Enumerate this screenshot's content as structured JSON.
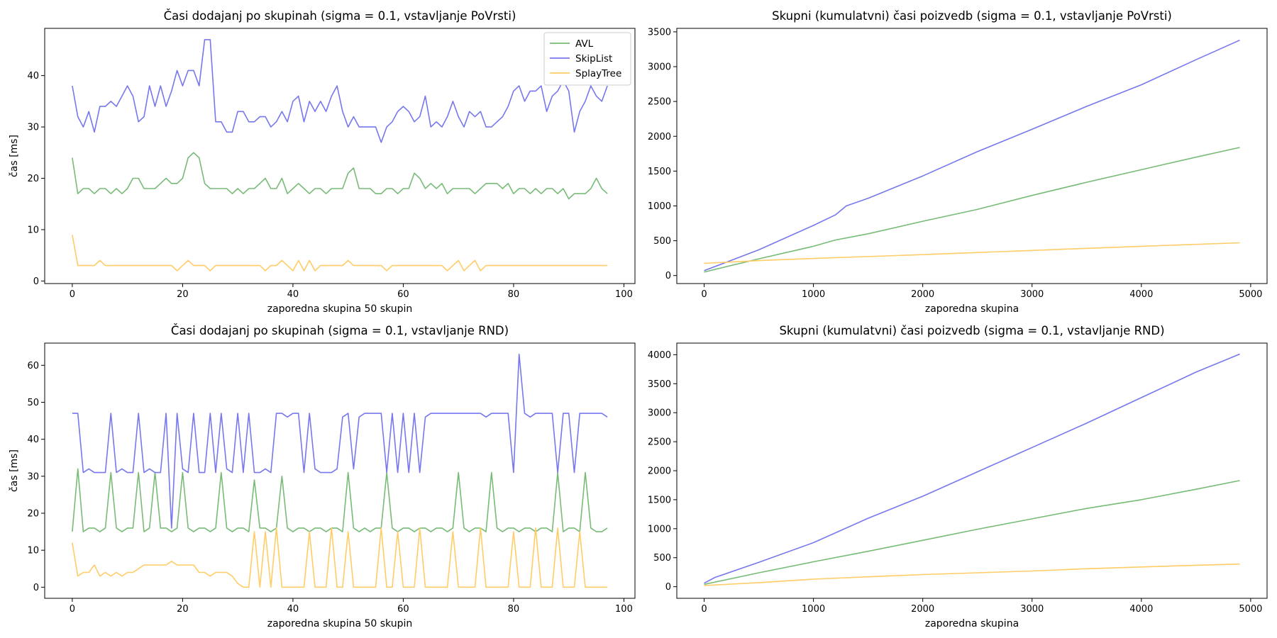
{
  "chart_data": [
    {
      "type": "line",
      "title": "Časi dodajanj po skupinah (sigma = 0.1, vstavljanje PoVrsti)",
      "xlabel": "zaporedna skupina 50 skupin",
      "ylabel": "čas [ms]",
      "xlim": [
        -5,
        102
      ],
      "ylim": [
        -0.5,
        49.2
      ],
      "xticks": [
        0,
        20,
        40,
        60,
        80,
        100
      ],
      "yticks": [
        0,
        10,
        20,
        30,
        40
      ],
      "legend": "top-right",
      "grid": false,
      "x_start": 0,
      "x_step": 1,
      "series": [
        {
          "name": "AVL",
          "color": "#77bb77",
          "values": [
            24,
            17,
            18,
            18,
            17,
            18,
            18,
            17,
            18,
            17,
            18,
            20,
            20,
            18,
            18,
            18,
            19,
            20,
            19,
            19,
            20,
            24,
            25,
            24,
            19,
            18,
            18,
            18,
            18,
            17,
            18,
            17,
            18,
            18,
            19,
            20,
            18,
            18,
            20,
            17,
            18,
            19,
            18,
            17,
            18,
            18,
            17,
            18,
            18,
            18,
            21,
            22,
            18,
            18,
            18,
            17,
            17,
            18,
            18,
            17,
            18,
            18,
            21,
            20,
            18,
            19,
            18,
            19,
            17,
            18,
            18,
            18,
            18,
            17,
            18,
            19,
            19,
            19,
            18,
            19,
            17,
            18,
            18,
            17,
            18,
            17,
            18,
            18,
            17,
            18,
            16,
            17,
            17,
            17,
            18,
            20,
            18,
            17
          ]
        },
        {
          "name": "SkipList",
          "color": "#7777ee",
          "values": [
            38,
            32,
            30,
            33,
            29,
            34,
            34,
            35,
            34,
            36,
            38,
            36,
            31,
            32,
            38,
            34,
            38,
            34,
            37,
            41,
            38,
            41,
            41,
            38,
            47,
            47,
            31,
            31,
            29,
            29,
            33,
            33,
            31,
            31,
            32,
            32,
            30,
            31,
            33,
            31,
            35,
            36,
            31,
            35,
            33,
            35,
            33,
            36,
            38,
            33,
            30,
            32,
            30,
            30,
            30,
            30,
            27,
            30,
            31,
            33,
            34,
            33,
            31,
            32,
            36,
            30,
            31,
            30,
            32,
            35,
            32,
            30,
            33,
            32,
            33,
            30,
            30,
            31,
            32,
            34,
            37,
            38,
            35,
            37,
            37,
            38,
            33,
            36,
            37,
            39,
            37,
            29,
            33,
            35,
            38,
            36,
            35,
            38
          ]
        },
        {
          "name": "SplayTree",
          "color": "#ffcc66",
          "values": [
            9,
            3,
            3,
            3,
            3,
            4,
            3,
            3,
            3,
            3,
            3,
            3,
            3,
            3,
            3,
            3,
            3,
            3,
            3,
            2,
            3,
            4,
            3,
            3,
            3,
            2,
            3,
            3,
            3,
            3,
            3,
            3,
            3,
            3,
            3,
            2,
            3,
            3,
            4,
            3,
            2,
            4,
            2,
            4,
            2,
            3,
            3,
            3,
            3,
            3,
            4,
            3,
            3,
            3,
            3,
            3,
            3,
            2,
            3,
            3,
            3,
            3,
            3,
            3,
            3,
            3,
            3,
            3,
            2,
            3,
            4,
            2,
            3,
            4,
            2,
            3,
            3,
            3,
            3,
            3,
            3,
            3,
            3,
            3,
            3,
            3,
            3,
            3,
            3,
            3,
            3,
            3,
            3,
            3,
            3,
            3,
            3,
            3
          ]
        }
      ]
    },
    {
      "type": "line",
      "title": "Skupni (kumulatvni) časi poizvedb (sigma = 0.1, vstavljanje PoVrsti)",
      "xlabel": "zaporedna skupina",
      "ylabel": "",
      "xlim": [
        -250,
        5150
      ],
      "ylim": [
        -115,
        3550
      ],
      "xticks": [
        0,
        1000,
        2000,
        3000,
        4000,
        5000
      ],
      "yticks": [
        0,
        500,
        1000,
        1500,
        2000,
        2500,
        3000,
        3500
      ],
      "legend": "none",
      "grid": false,
      "series": [
        {
          "name": "AVL",
          "color": "#77bb77",
          "x": [
            0,
            500,
            1000,
            1200,
            1500,
            2000,
            2500,
            3000,
            3500,
            4000,
            4500,
            4900
          ],
          "values": [
            50,
            240,
            420,
            510,
            600,
            780,
            950,
            1150,
            1340,
            1520,
            1700,
            1840
          ]
        },
        {
          "name": "SkipList",
          "color": "#7777ee",
          "x": [
            0,
            500,
            1000,
            1200,
            1300,
            1500,
            2000,
            2500,
            3000,
            3500,
            4000,
            4500,
            4900
          ],
          "values": [
            70,
            370,
            720,
            870,
            1000,
            1110,
            1430,
            1780,
            2100,
            2430,
            2740,
            3100,
            3380
          ]
        },
        {
          "name": "SplayTree",
          "color": "#ffcc66",
          "x": [
            0,
            500,
            1000,
            2000,
            3000,
            4000,
            4900
          ],
          "values": [
            175,
            215,
            245,
            300,
            360,
            420,
            470
          ]
        }
      ]
    },
    {
      "type": "line",
      "title": "Časi dodajanj po skupinah (sigma = 0.1, vstavljanje RND)",
      "xlabel": "zaporedna skupina 50 skupin",
      "ylabel": "čas [ms]",
      "xlim": [
        -5,
        102
      ],
      "ylim": [
        -3,
        66
      ],
      "xticks": [
        0,
        20,
        40,
        60,
        80,
        100
      ],
      "yticks": [
        0,
        10,
        20,
        30,
        40,
        50,
        60
      ],
      "legend": "none",
      "grid": false,
      "x_start": 0,
      "x_step": 1,
      "series": [
        {
          "name": "AVL",
          "color": "#77bb77",
          "values": [
            15,
            32,
            15,
            16,
            16,
            15,
            16,
            31,
            16,
            15,
            16,
            16,
            31,
            15,
            16,
            31,
            16,
            16,
            15,
            16,
            31,
            16,
            15,
            16,
            16,
            15,
            16,
            31,
            16,
            15,
            16,
            16,
            15,
            29,
            16,
            16,
            15,
            16,
            30,
            16,
            15,
            16,
            16,
            15,
            16,
            16,
            15,
            16,
            16,
            15,
            31,
            16,
            15,
            16,
            15,
            16,
            16,
            31,
            16,
            15,
            16,
            16,
            15,
            16,
            16,
            15,
            16,
            16,
            15,
            16,
            31,
            16,
            15,
            16,
            16,
            15,
            31,
            16,
            15,
            16,
            16,
            15,
            16,
            16,
            15,
            16,
            16,
            15,
            31,
            15,
            16,
            16,
            15,
            31,
            16,
            15,
            15,
            16
          ]
        },
        {
          "name": "SkipList",
          "color": "#7777ee",
          "values": [
            47,
            47,
            31,
            32,
            31,
            31,
            31,
            47,
            31,
            32,
            31,
            31,
            47,
            31,
            32,
            31,
            31,
            47,
            16,
            47,
            32,
            31,
            47,
            31,
            31,
            47,
            31,
            47,
            32,
            31,
            47,
            31,
            47,
            31,
            31,
            32,
            31,
            47,
            47,
            46,
            47,
            47,
            31,
            47,
            32,
            31,
            31,
            31,
            32,
            46,
            47,
            32,
            46,
            47,
            47,
            47,
            47,
            31,
            47,
            31,
            47,
            31,
            47,
            31,
            46,
            47,
            47,
            47,
            47,
            47,
            47,
            47,
            47,
            47,
            47,
            46,
            47,
            47,
            47,
            47,
            31,
            63,
            47,
            46,
            47,
            47,
            47,
            47,
            31,
            47,
            47,
            31,
            47,
            47,
            47,
            47,
            47,
            46
          ]
        },
        {
          "name": "SplayTree",
          "color": "#ffcc66",
          "values": [
            12,
            3,
            4,
            4,
            6,
            3,
            4,
            3,
            4,
            3,
            4,
            4,
            5,
            6,
            6,
            6,
            6,
            6,
            7,
            6,
            6,
            6,
            6,
            4,
            4,
            3,
            4,
            4,
            4,
            3,
            1,
            0,
            0,
            15,
            0,
            15,
            0,
            16,
            0,
            0,
            0,
            0,
            0,
            15,
            0,
            0,
            0,
            16,
            0,
            0,
            15,
            0,
            0,
            0,
            0,
            0,
            16,
            0,
            0,
            15,
            0,
            0,
            0,
            16,
            0,
            0,
            0,
            0,
            0,
            15,
            0,
            0,
            0,
            0,
            16,
            0,
            0,
            0,
            0,
            0,
            15,
            0,
            0,
            0,
            16,
            0,
            0,
            0,
            16,
            0,
            0,
            0,
            15,
            0,
            0,
            0,
            0,
            0
          ]
        }
      ]
    },
    {
      "type": "line",
      "title": "Skupni (kumulatvni) časi poizvedb (sigma = 0.1, vstavljanje RND)",
      "xlabel": "zaporedna skupina",
      "ylabel": "",
      "xlim": [
        -250,
        5150
      ],
      "ylim": [
        -200,
        4200
      ],
      "xticks": [
        0,
        1000,
        2000,
        3000,
        4000,
        5000
      ],
      "yticks": [
        0,
        500,
        1000,
        1500,
        2000,
        2500,
        3000,
        3500,
        4000
      ],
      "legend": "none",
      "grid": false,
      "series": [
        {
          "name": "AVL",
          "color": "#77bb77",
          "x": [
            0,
            500,
            1000,
            1500,
            2000,
            2500,
            3000,
            3500,
            4000,
            4500,
            4900
          ],
          "values": [
            40,
            240,
            430,
            610,
            800,
            990,
            1170,
            1350,
            1500,
            1680,
            1830
          ]
        },
        {
          "name": "SkipList",
          "color": "#7777ee",
          "x": [
            0,
            100,
            500,
            1000,
            1500,
            2000,
            2500,
            3000,
            3500,
            4000,
            4500,
            4900
          ],
          "values": [
            60,
            160,
            420,
            760,
            1180,
            1560,
            1980,
            2400,
            2820,
            3260,
            3700,
            4010
          ]
        },
        {
          "name": "SplayTree",
          "color": "#ffcc66",
          "x": [
            0,
            500,
            1000,
            1500,
            2000,
            2500,
            3000,
            3500,
            4000,
            4500,
            4900
          ],
          "values": [
            20,
            70,
            130,
            170,
            210,
            240,
            270,
            310,
            340,
            370,
            390
          ]
        }
      ]
    }
  ]
}
